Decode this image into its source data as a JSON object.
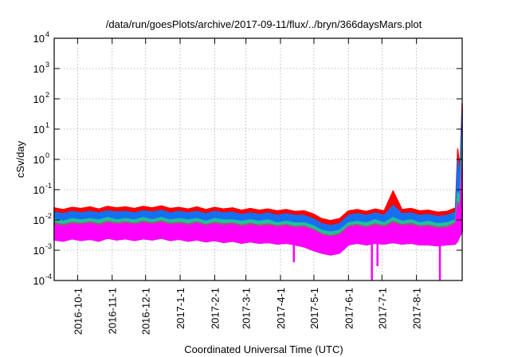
{
  "chart_data": {
    "type": "area",
    "title": "/data/run/goesPlots/archive/2017-09-11/flux/../bryn/366daysMars.plot",
    "xlabel": "Coordinated Universal Time (UTC)",
    "ylabel": "cSv/day",
    "yscale": "log",
    "ylim": [
      0.0001,
      10000
    ],
    "xlim_days": [
      0,
      366
    ],
    "grid": true,
    "y_ticks": [
      {
        "base": "10",
        "exp": "4",
        "value": 10000
      },
      {
        "base": "10",
        "exp": "3",
        "value": 1000
      },
      {
        "base": "10",
        "exp": "2",
        "value": 100
      },
      {
        "base": "10",
        "exp": "1",
        "value": 10
      },
      {
        "base": "10",
        "exp": "0",
        "value": 1
      },
      {
        "base": "10",
        "exp": "-1",
        "value": 0.1
      },
      {
        "base": "10",
        "exp": "-2",
        "value": 0.01
      },
      {
        "base": "10",
        "exp": "-3",
        "value": 0.001
      },
      {
        "base": "10",
        "exp": "-4",
        "value": 0.0001
      }
    ],
    "x_ticks": [
      {
        "label": "2016-10-1",
        "day": 21
      },
      {
        "label": "2016-11-1",
        "day": 52
      },
      {
        "label": "2016-12-1",
        "day": 82
      },
      {
        "label": "2017-1-1",
        "day": 113
      },
      {
        "label": "2017-2-1",
        "day": 144
      },
      {
        "label": "2017-3-1",
        "day": 172
      },
      {
        "label": "2017-4-1",
        "day": 203
      },
      {
        "label": "2017-5-1",
        "day": 233
      },
      {
        "label": "2017-6-1",
        "day": 264
      },
      {
        "label": "2017-7-1",
        "day": 294
      },
      {
        "label": "2017-8-1",
        "day": 325
      }
    ],
    "x_days": [
      0,
      8,
      16,
      24,
      32,
      40,
      48,
      56,
      64,
      72,
      80,
      88,
      96,
      104,
      112,
      120,
      128,
      136,
      144,
      152,
      160,
      168,
      176,
      184,
      192,
      200,
      208,
      216,
      224,
      232,
      240,
      248,
      256,
      264,
      272,
      280,
      288,
      296,
      304,
      312,
      320,
      328,
      336,
      344,
      352,
      360,
      362,
      364,
      366
    ],
    "band_floor": [
      0.0022,
      0.002,
      0.0024,
      0.0021,
      0.0023,
      0.002,
      0.0025,
      0.0022,
      0.0024,
      0.0021,
      0.0024,
      0.0022,
      0.0025,
      0.0021,
      0.0023,
      0.002,
      0.0022,
      0.0019,
      0.0021,
      0.0018,
      0.002,
      0.0017,
      0.0019,
      0.0017,
      0.0018,
      0.0016,
      0.0017,
      0.0015,
      0.0013,
      0.001,
      0.0008,
      0.0007,
      0.0008,
      0.0015,
      0.0017,
      0.0015,
      0.0017,
      0.0016,
      0.0018,
      0.0016,
      0.0017,
      0.0015,
      0.0015,
      0.0014,
      0.0015,
      0.0016,
      0.002,
      0.003,
      0.004
    ],
    "series": [
      {
        "name": "red",
        "color": "#ff0000",
        "values": [
          0.025,
          0.022,
          0.026,
          0.024,
          0.027,
          0.023,
          0.028,
          0.025,
          0.027,
          0.024,
          0.028,
          0.025,
          0.029,
          0.024,
          0.026,
          0.023,
          0.027,
          0.022,
          0.026,
          0.023,
          0.025,
          0.021,
          0.024,
          0.021,
          0.023,
          0.02,
          0.022,
          0.019,
          0.02,
          0.016,
          0.011,
          0.0095,
          0.011,
          0.02,
          0.022,
          0.019,
          0.023,
          0.02,
          0.09,
          0.022,
          0.024,
          0.02,
          0.021,
          0.018,
          0.019,
          0.025,
          2.2,
          0.5,
          70
        ]
      },
      {
        "name": "blue",
        "color": "#1470f0",
        "values": [
          0.018,
          0.016,
          0.019,
          0.017,
          0.019,
          0.017,
          0.02,
          0.018,
          0.019,
          0.017,
          0.02,
          0.018,
          0.021,
          0.017,
          0.019,
          0.017,
          0.019,
          0.016,
          0.019,
          0.017,
          0.018,
          0.015,
          0.017,
          0.015,
          0.017,
          0.014,
          0.016,
          0.014,
          0.014,
          0.011,
          0.0075,
          0.0065,
          0.0075,
          0.014,
          0.016,
          0.014,
          0.017,
          0.014,
          0.03,
          0.016,
          0.017,
          0.014,
          0.015,
          0.013,
          0.014,
          0.018,
          1.0,
          0.3,
          40
        ]
      },
      {
        "name": "teal",
        "color": "#20c0a0",
        "values": [
          0.011,
          0.009,
          0.011,
          0.01,
          0.011,
          0.01,
          0.012,
          0.01,
          0.011,
          0.01,
          0.012,
          0.01,
          0.012,
          0.01,
          0.011,
          0.01,
          0.011,
          0.009,
          0.011,
          0.01,
          0.01,
          0.009,
          0.01,
          0.009,
          0.01,
          0.008,
          0.009,
          0.008,
          0.008,
          0.0065,
          0.0045,
          0.004,
          0.0045,
          0.008,
          0.009,
          0.008,
          0.01,
          0.008,
          0.012,
          0.009,
          0.01,
          0.008,
          0.009,
          0.0075,
          0.008,
          0.01,
          0.08,
          0.06,
          5
        ]
      },
      {
        "name": "mauve",
        "color": "#a05878",
        "values": [
          0.008,
          0.007,
          0.0083,
          0.0077,
          0.0086,
          0.0074,
          0.009,
          0.008,
          0.0086,
          0.0077,
          0.009,
          0.008,
          0.0093,
          0.0077,
          0.0083,
          0.0074,
          0.0086,
          0.007,
          0.0083,
          0.0074,
          0.008,
          0.0067,
          0.0077,
          0.0067,
          0.0074,
          0.0064,
          0.007,
          0.0061,
          0.0064,
          0.005,
          0.0035,
          0.003,
          0.0035,
          0.0064,
          0.007,
          0.0061,
          0.0074,
          0.0064,
          0.009,
          0.007,
          0.0077,
          0.0064,
          0.0067,
          0.0058,
          0.0061,
          0.008,
          0.04,
          0.03,
          2
        ]
      },
      {
        "name": "magenta",
        "color": "#ff00ff",
        "values": [
          0.007,
          0.006,
          0.0073,
          0.0067,
          0.0076,
          0.0064,
          0.0078,
          0.007,
          0.0076,
          0.0067,
          0.0078,
          0.007,
          0.0081,
          0.0067,
          0.0073,
          0.0064,
          0.0076,
          0.0062,
          0.0073,
          0.0064,
          0.007,
          0.0059,
          0.0067,
          0.0059,
          0.0064,
          0.0056,
          0.0062,
          0.0053,
          0.0056,
          0.0045,
          0.0031,
          0.0027,
          0.0031,
          0.0056,
          0.0062,
          0.0053,
          0.0064,
          0.0056,
          0.0075,
          0.0062,
          0.0067,
          0.0056,
          0.0059,
          0.005,
          0.0053,
          0.007,
          0.03,
          0.02,
          0.6
        ]
      }
    ],
    "magenta_dips": [
      {
        "day": 215,
        "value": 0.0004
      },
      {
        "day": 285,
        "value": 0.0001
      },
      {
        "day": 290,
        "value": 0.0003
      },
      {
        "day": 346,
        "value": 0.0001
      }
    ]
  }
}
